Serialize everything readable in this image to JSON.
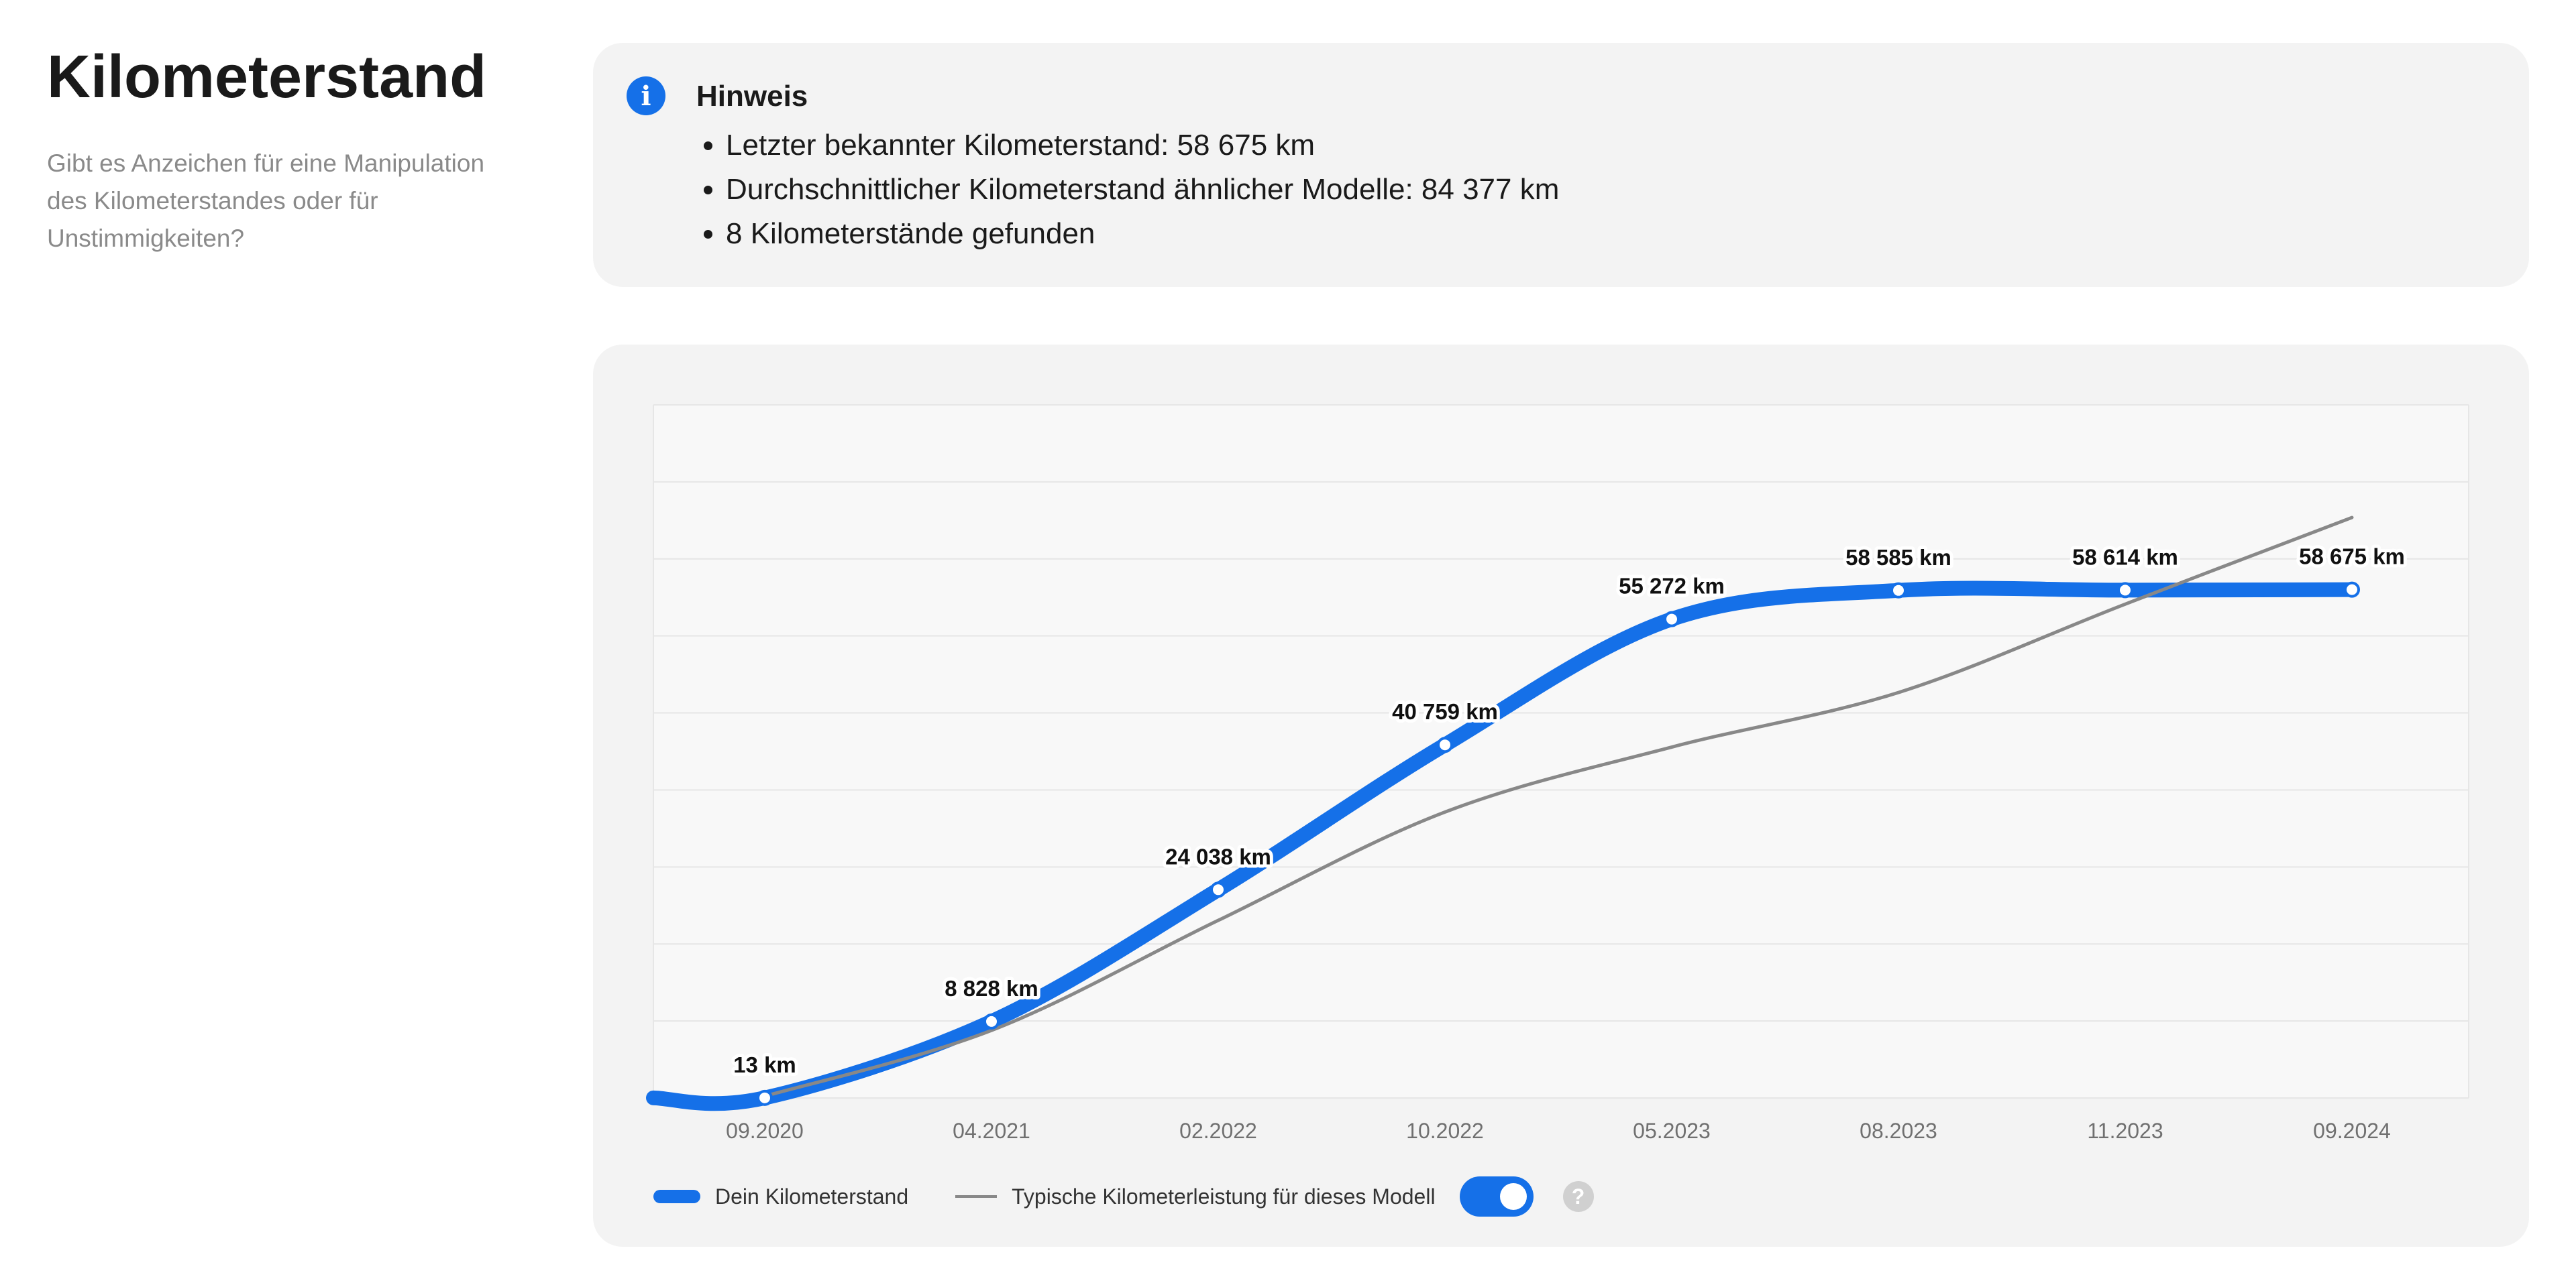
{
  "left": {
    "title": "Kilometerstand",
    "subtitle": "Gibt es Anzeichen für eine Manipulation des Kilometerstandes oder für Unstimmigkeiten?"
  },
  "notice": {
    "icon": "info-icon",
    "icon_glyph": "i",
    "title": "Hinweis",
    "items": [
      "Letzter bekannter Kilometerstand: 58 675 km",
      "Durchschnittlicher Kilometerstand ähnlicher Modelle: 84 377 km",
      "8 Kilometerstände gefunden"
    ]
  },
  "chart_data": {
    "type": "line",
    "categories": [
      "09.2020",
      "04.2021",
      "02.2022",
      "10.2022",
      "05.2023",
      "08.2023",
      "11.2023",
      "09.2024"
    ],
    "series": [
      {
        "name": "Dein Kilometerstand",
        "color": "#1570e8",
        "values": [
          13,
          8828,
          24038,
          40759,
          55272,
          58585,
          58614,
          58675
        ],
        "labels": [
          "13 km",
          "8 828 km",
          "24 038 km",
          "40 759 km",
          "55 272 km",
          "58 585 km",
          "58 614 km",
          "58 675 km"
        ]
      },
      {
        "name": "Typische Kilometerleistung für dieses Modell",
        "color": "#888888",
        "values": [
          200,
          7800,
          20500,
          33000,
          40500,
          46800,
          57000,
          67000
        ]
      }
    ],
    "ylim": [
      0,
      80000
    ],
    "grid": true,
    "legend_position": "bottom-left"
  },
  "legend": {
    "series1_label": "Dein Kilometerstand",
    "series2_label": "Typische Kilometerleistung für dieses Modell",
    "toggle_on": true,
    "help_glyph": "?"
  }
}
